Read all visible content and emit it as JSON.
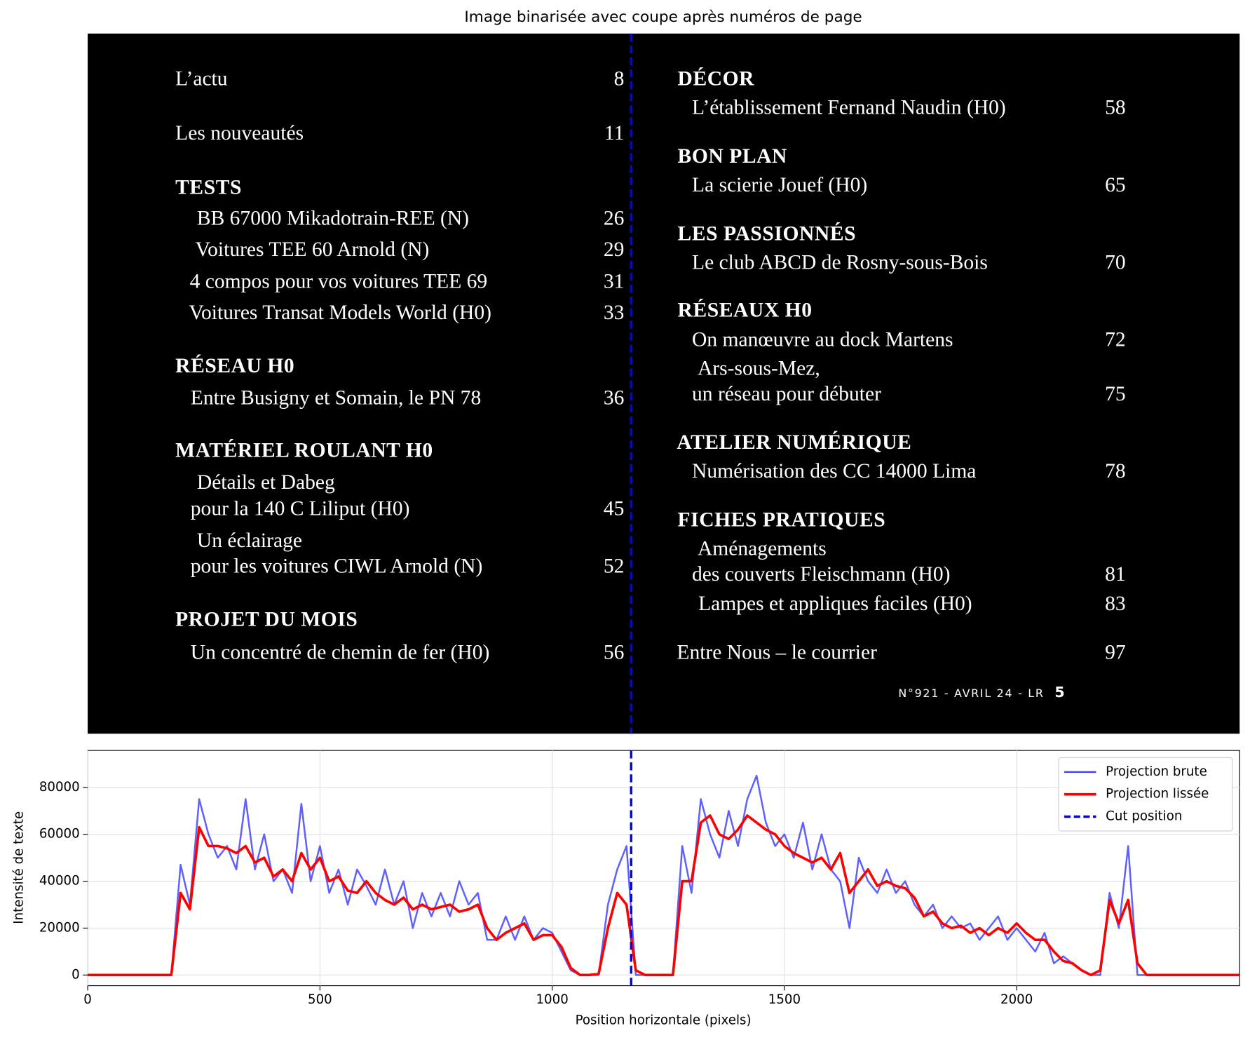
{
  "image": {
    "title": "Image binarisée avec coupe après numéros de page",
    "left": [
      {
        "text": "L’actu",
        "page": "8"
      },
      {
        "text": "Les nouveautés",
        "page": "11"
      },
      {
        "text": "TESTS"
      },
      {
        "text": "BB 67000 Mikadotrain-REE (N)",
        "page": "26"
      },
      {
        "text": "Voitures TEE 60 Arnold (N)",
        "page": "29"
      },
      {
        "text": "4 compos pour vos voitures TEE 69",
        "page": "31"
      },
      {
        "text": "Voitures Transat Models World (H0)",
        "page": "33"
      },
      {
        "text": "RÉSEAU H0"
      },
      {
        "text": "Entre Busigny et Somain, le PN 78",
        "page": "36"
      },
      {
        "text": "MATÉRIEL ROULANT H0"
      },
      {
        "text": "Détails et Dabeg"
      },
      {
        "text": "pour la 140 C Liliput (H0)",
        "page": "45"
      },
      {
        "text": "Un éclairage"
      },
      {
        "text": "pour les voitures CIWL Arnold (N)",
        "page": "52"
      },
      {
        "text": "PROJET DU MOIS"
      },
      {
        "text": "Un concentré de chemin de fer (H0)",
        "page": "56"
      }
    ],
    "right": [
      {
        "text": "DÉCOR"
      },
      {
        "text": "L’établissement Fernand Naudin (H0)",
        "page": "58"
      },
      {
        "text": "BON PLAN"
      },
      {
        "text": "La scierie Jouef (H0)",
        "page": "65"
      },
      {
        "text": "LES PASSIONNÉS"
      },
      {
        "text": "Le club ABCD de Rosny-sous-Bois",
        "page": "70"
      },
      {
        "text": "RÉSEAUX H0"
      },
      {
        "text": "On manœuvre au dock Martens",
        "page": "72"
      },
      {
        "text": "Ars-sous-Mez,"
      },
      {
        "text": "un réseau pour débuter",
        "page": "75"
      },
      {
        "text": "ATELIER NUMÉRIQUE"
      },
      {
        "text": "Numérisation des CC 14000 Lima",
        "page": "78"
      },
      {
        "text": "FICHES PRATIQUES"
      },
      {
        "text": "Aménagements"
      },
      {
        "text": "des couverts Fleischmann (H0)",
        "page": "81"
      },
      {
        "text": "Lampes et appliques faciles (H0)",
        "page": "83"
      },
      {
        "text": "Entre Nous – le courrier",
        "page": "97"
      }
    ],
    "footer": {
      "text": "N°921 - AVRIL 24 - LR",
      "page": "5"
    }
  },
  "chart_data": {
    "type": "line",
    "x_label": "Position horizontale (pixels)",
    "y_label": "Intensité de texte",
    "x": [
      0,
      20,
      40,
      60,
      80,
      100,
      120,
      140,
      160,
      180,
      200,
      220,
      240,
      260,
      280,
      300,
      320,
      340,
      360,
      380,
      400,
      420,
      440,
      460,
      480,
      500,
      520,
      540,
      560,
      580,
      600,
      620,
      640,
      660,
      680,
      700,
      720,
      740,
      760,
      780,
      800,
      820,
      840,
      860,
      880,
      900,
      920,
      940,
      960,
      980,
      1000,
      1020,
      1040,
      1060,
      1080,
      1100,
      1120,
      1140,
      1160,
      1180,
      1200,
      1220,
      1240,
      1260,
      1280,
      1300,
      1320,
      1340,
      1360,
      1380,
      1400,
      1420,
      1440,
      1460,
      1480,
      1500,
      1520,
      1540,
      1560,
      1580,
      1600,
      1620,
      1640,
      1660,
      1680,
      1700,
      1720,
      1740,
      1760,
      1780,
      1800,
      1820,
      1840,
      1860,
      1880,
      1900,
      1920,
      1940,
      1960,
      1980,
      2000,
      2020,
      2040,
      2060,
      2080,
      2100,
      2120,
      2140,
      2160,
      2180,
      2200,
      2220,
      2240,
      2260,
      2280,
      2300,
      2320,
      2340,
      2360,
      2380,
      2400,
      2420,
      2440,
      2460,
      2480
    ],
    "series": [
      {
        "name": "Projection brute",
        "color": "#4444ff",
        "values": [
          0,
          0,
          0,
          0,
          0,
          0,
          0,
          0,
          0,
          0,
          47000,
          30000,
          75000,
          60000,
          50000,
          55000,
          45000,
          75000,
          45000,
          60000,
          40000,
          45000,
          35000,
          73000,
          40000,
          55000,
          35000,
          45000,
          30000,
          45000,
          38000,
          30000,
          45000,
          30000,
          40000,
          20000,
          35000,
          25000,
          35000,
          25000,
          40000,
          30000,
          35000,
          15000,
          15000,
          25000,
          15000,
          25000,
          15000,
          20000,
          18000,
          10000,
          2000,
          0,
          0,
          0,
          30000,
          45000,
          55000,
          0,
          0,
          0,
          0,
          0,
          55000,
          35000,
          75000,
          60000,
          50000,
          70000,
          55000,
          75000,
          85000,
          65000,
          55000,
          60000,
          50000,
          65000,
          45000,
          60000,
          45000,
          40000,
          20000,
          50000,
          40000,
          35000,
          45000,
          35000,
          40000,
          30000,
          25000,
          30000,
          20000,
          25000,
          20000,
          22000,
          15000,
          20000,
          25000,
          15000,
          20000,
          15000,
          10000,
          18000,
          5000,
          8000,
          5000,
          2000,
          0,
          0,
          35000,
          20000,
          55000,
          0,
          0,
          0,
          0,
          0,
          0,
          0,
          0,
          0,
          0,
          0,
          0
        ]
      },
      {
        "name": "Projection lissée",
        "color": "#ff0000",
        "values": [
          0,
          0,
          0,
          0,
          0,
          0,
          0,
          0,
          0,
          0,
          35000,
          28000,
          63000,
          55000,
          55000,
          54000,
          52000,
          55000,
          48000,
          50000,
          42000,
          45000,
          40000,
          52000,
          45000,
          50000,
          40000,
          42000,
          36000,
          35000,
          40000,
          35000,
          32000,
          30000,
          33000,
          28000,
          30000,
          28000,
          29000,
          30000,
          27000,
          28000,
          30000,
          20000,
          15000,
          18000,
          20000,
          22000,
          15000,
          17000,
          17000,
          12000,
          3000,
          0,
          0,
          500,
          20000,
          35000,
          30000,
          2000,
          0,
          0,
          0,
          0,
          40000,
          40000,
          65000,
          68000,
          60000,
          58000,
          62000,
          68000,
          65000,
          62000,
          60000,
          55000,
          52000,
          50000,
          48000,
          50000,
          45000,
          52000,
          35000,
          40000,
          45000,
          38000,
          40000,
          38000,
          37000,
          33000,
          25000,
          27000,
          22000,
          20000,
          21000,
          18000,
          20000,
          17000,
          20000,
          18000,
          22000,
          18000,
          15000,
          15000,
          10000,
          6000,
          5000,
          2000,
          0,
          2000,
          32000,
          22000,
          32000,
          5000,
          0,
          0,
          0,
          0,
          0,
          0,
          0,
          0,
          0,
          0,
          0
        ]
      }
    ],
    "cut": {
      "name": "Cut position",
      "x": 1170,
      "color": "#0000ff"
    },
    "xlim": [
      0,
      2480
    ],
    "ylim": [
      -4560,
      95760
    ],
    "xticks": [
      0,
      500,
      1000,
      1500,
      2000
    ],
    "yticks": [
      0,
      20000,
      40000,
      60000,
      80000
    ],
    "grid": true,
    "legend": "upper right"
  }
}
